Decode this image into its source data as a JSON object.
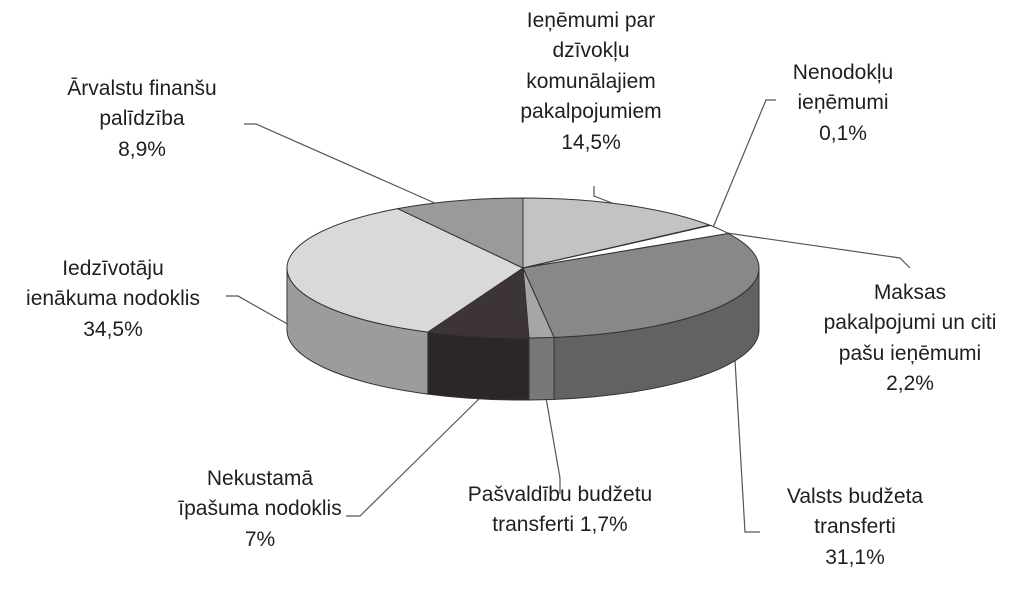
{
  "chart_data": {
    "type": "pie",
    "three_d": true,
    "slices": [
      {
        "name_lines": [
          "Ieņēmumi par",
          "dzīvokļu",
          "komunālajiem",
          "pakalpojumiem"
        ],
        "value_text": "14,5%",
        "value": 14.5,
        "color": "#c3c3c3"
      },
      {
        "name_lines": [
          "Nenodokļu",
          "ieņēmumi"
        ],
        "value_text": "0,1%",
        "value": 0.1,
        "color": "#d0d0d0"
      },
      {
        "name_lines": [
          "Maksas",
          "pakalpojumi un citi",
          "pašu ieņēmumi"
        ],
        "value_text": "2,2%",
        "value": 2.2,
        "color": "#ffffff"
      },
      {
        "name_lines": [
          "Valsts budžeta",
          "transferti"
        ],
        "value_text": "31,1%",
        "value": 31.1,
        "color": "#888888"
      },
      {
        "name_lines": [
          "Pašvaldību budžetu",
          "transferti 1,7%"
        ],
        "value_text": "",
        "value": 1.7,
        "color": "#a6a6a6"
      },
      {
        "name_lines": [
          "Nekustamā",
          "īpašuma nodoklis"
        ],
        "value_text": "7%",
        "value": 7.0,
        "color": "#3d3535"
      },
      {
        "name_lines": [
          "Iedzīvotāju",
          "ienākuma nodoklis"
        ],
        "value_text": "34,5%",
        "value": 34.5,
        "color": "#d9d9d9"
      },
      {
        "name_lines": [
          "Ārvalstu finanšu",
          "palīdzība"
        ],
        "value_text": "8,9%",
        "value": 8.9,
        "color": "#9a9a9a"
      }
    ]
  }
}
